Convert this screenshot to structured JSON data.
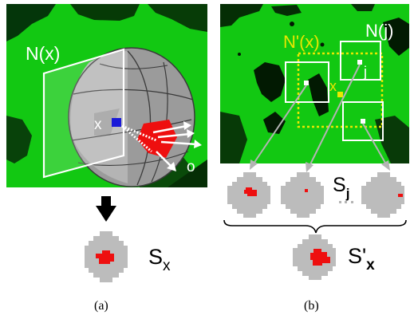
{
  "panel_a": {
    "region_label": "N(x)",
    "point_label": "x",
    "arrow_label": "o",
    "signature_main": "S",
    "signature_sub": "x",
    "caption": "(a)"
  },
  "panel_b": {
    "region_label_prime": "N'(x)",
    "region_label_j": "N(j)",
    "point_label_x": "x",
    "point_label_j": "j",
    "signature_j_main": "S",
    "signature_j_sub": "j",
    "signature_agg_main": "S'",
    "signature_agg_sub": "x",
    "caption": "(b)"
  },
  "colors": {
    "scene_green": "#12c812",
    "sphere_fill": "#9a9a9a",
    "blob_gray": "#bcbcbc",
    "blob_red": "#ee0f0f",
    "dotted_yellow": "#e8e800",
    "marker_blue": "#1a1ad8",
    "label_yellow": "#e6e600"
  }
}
